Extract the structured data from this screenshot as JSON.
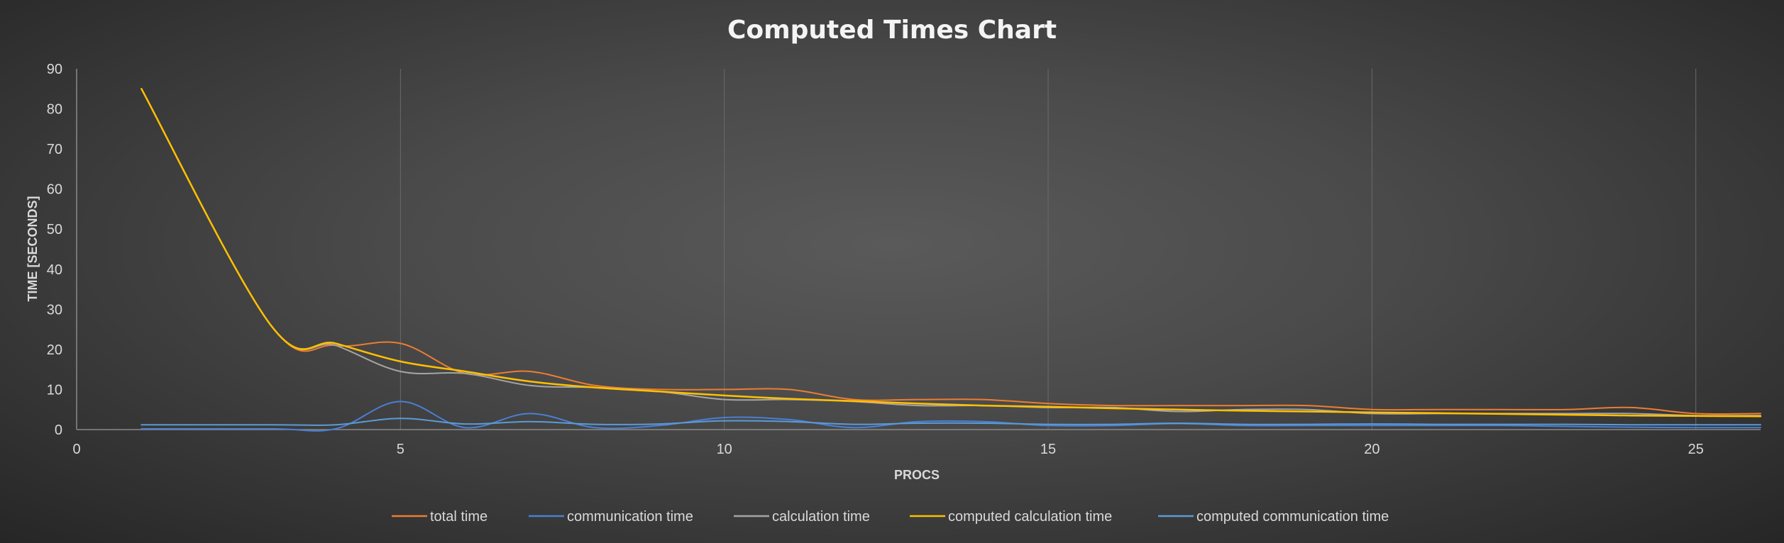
{
  "chart_data": {
    "type": "line",
    "title": "Computed Times Chart",
    "xlabel": "PROCS",
    "ylabel": "TIME [SECONDS]",
    "xlim": [
      0,
      26
    ],
    "ylim": [
      0,
      90
    ],
    "xticks": [
      "0",
      "5",
      "10",
      "15",
      "20",
      "25"
    ],
    "yticks": [
      "0",
      "10",
      "20",
      "30",
      "40",
      "50",
      "60",
      "70",
      "80",
      "90"
    ],
    "grid": "vertical",
    "legend_position": "bottom",
    "series": [
      {
        "name": "total time",
        "color": "#ed7d31",
        "x": [
          1,
          3,
          4,
          5,
          6,
          7,
          8,
          9,
          10,
          11,
          12,
          13,
          14,
          15,
          16,
          17,
          18,
          19,
          20,
          21,
          22,
          23,
          24,
          25,
          26
        ],
        "y": [
          85,
          26,
          21,
          21.5,
          14,
          14.5,
          11,
          10,
          10,
          10,
          7.5,
          7.5,
          7.5,
          6.5,
          6,
          6,
          6,
          6,
          5,
          5,
          5,
          5,
          5.5,
          4,
          4
        ]
      },
      {
        "name": "communication time",
        "color": "#4a7fd4",
        "x": [
          1,
          3,
          4,
          5,
          6,
          7,
          8,
          9,
          10,
          11,
          12,
          13,
          14,
          15,
          16,
          17,
          18,
          19,
          20,
          21,
          22,
          23,
          24,
          25,
          26
        ],
        "y": [
          0.2,
          0.2,
          0.2,
          7,
          0.5,
          4,
          0.5,
          1,
          3,
          2.5,
          0.5,
          2,
          2,
          1,
          1,
          1.5,
          1,
          1,
          1,
          1,
          1,
          0.8,
          0.6,
          0.5,
          0.5
        ]
      },
      {
        "name": "calculation time",
        "color": "#a5a5a5",
        "x": [
          1,
          3,
          4,
          5,
          6,
          7,
          8,
          9,
          10,
          11,
          12,
          13,
          14,
          15,
          16,
          17,
          18,
          19,
          20,
          21,
          22,
          23,
          24,
          25,
          26
        ],
        "y": [
          85,
          26,
          21,
          14.5,
          14,
          11,
          10.5,
          9.5,
          7.5,
          7.5,
          7,
          6,
          6,
          5.5,
          5.5,
          4.5,
          5,
          5,
          4,
          4,
          4,
          4,
          4,
          3.5,
          3.5
        ]
      },
      {
        "name": "computed calculation time",
        "color": "#ffc000",
        "x": [
          1,
          3,
          4,
          5,
          6,
          7,
          8,
          9,
          10,
          11,
          12,
          13,
          14,
          15,
          16,
          17,
          18,
          19,
          20,
          21,
          22,
          23,
          24,
          25,
          26
        ],
        "y": [
          85,
          26,
          21.5,
          17,
          14.5,
          12,
          10.5,
          9.5,
          8.5,
          7.7,
          7.1,
          6.5,
          6,
          5.7,
          5.3,
          5,
          4.7,
          4.5,
          4.3,
          4.1,
          3.9,
          3.7,
          3.5,
          3.4,
          3.3
        ]
      },
      {
        "name": "computed communication time",
        "color": "#5b9bd5",
        "x": [
          1,
          3,
          4,
          5,
          6,
          7,
          8,
          9,
          10,
          11,
          12,
          13,
          14,
          15,
          16,
          17,
          18,
          19,
          20,
          21,
          22,
          23,
          24,
          25,
          26
        ],
        "y": [
          1.2,
          1.2,
          1.2,
          2.8,
          1.4,
          2,
          1.3,
          1.4,
          2.2,
          2,
          1.3,
          1.6,
          1.6,
          1.3,
          1.3,
          1.6,
          1.3,
          1.3,
          1.4,
          1.3,
          1.3,
          1.3,
          1.2,
          1.2,
          1.2
        ]
      }
    ]
  }
}
